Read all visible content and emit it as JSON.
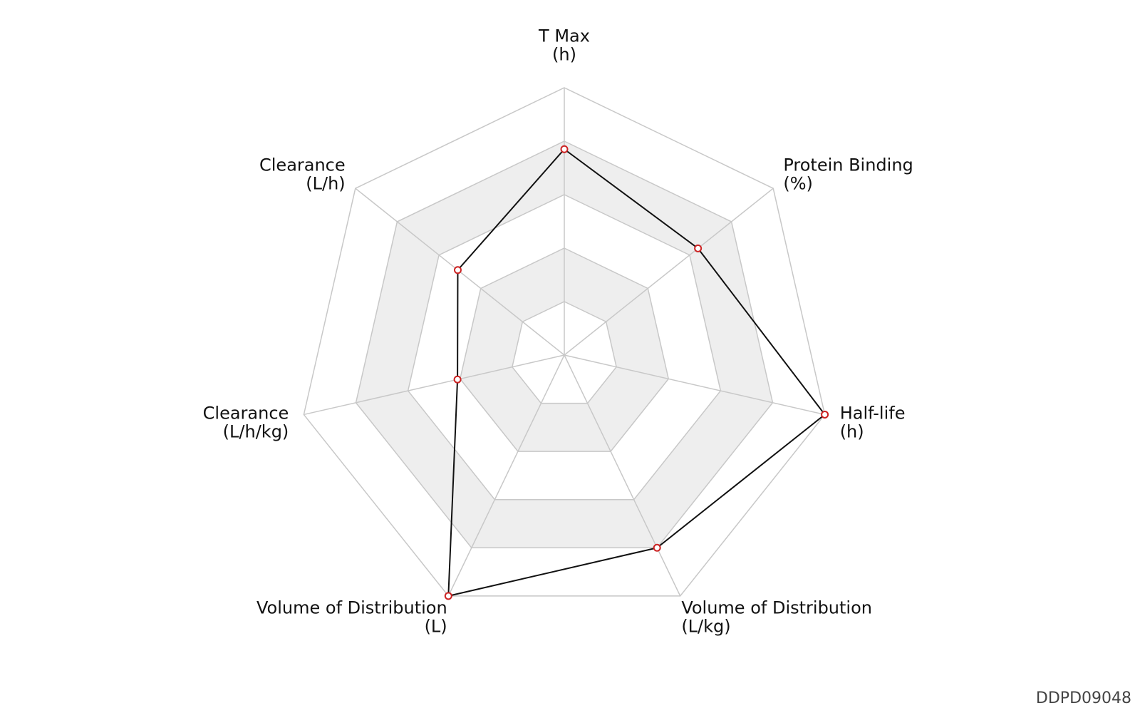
{
  "chart_data": {
    "type": "radar",
    "axes": [
      {
        "name": "T Max",
        "unit": "(h)"
      },
      {
        "name": "Protein Binding",
        "unit": "(%)"
      },
      {
        "name": "Half-life",
        "unit": "(h)"
      },
      {
        "name": "Volume of Distribution",
        "unit": "(L/kg)"
      },
      {
        "name": "Volume of Distribution",
        "unit": "(L)"
      },
      {
        "name": "Clearance",
        "unit": "(L/h/kg)"
      },
      {
        "name": "Clearance",
        "unit": "(L/h)"
      }
    ],
    "values": [
      0.77,
      0.64,
      1.0,
      0.8,
      1.0,
      0.41,
      0.51
    ],
    "range": [
      0,
      1
    ],
    "rings": 5,
    "ring_shading": "alternating",
    "colors": {
      "series_line": "#111111",
      "marker_edge": "#cc2222",
      "marker_fill": "#ffffff",
      "grid": "#c8c8c8",
      "band_fill": "#eeeeee"
    }
  },
  "chart_id": "DDPD09048"
}
